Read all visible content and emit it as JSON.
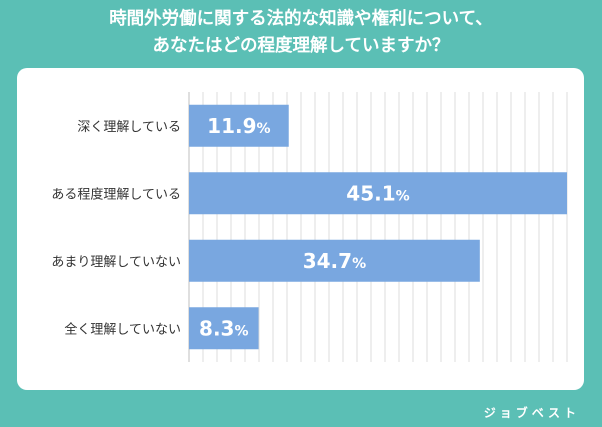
{
  "chart_data": {
    "type": "bar",
    "orientation": "horizontal",
    "title_lines": [
      "時間外労働に関する法的な知識や権利について、",
      "あなたはどの程度理解していますか？"
    ],
    "categories": [
      "深く理解している",
      "ある程度理解している",
      "あまり理解していない",
      "全く理解していない"
    ],
    "values": [
      11.9,
      45.1,
      34.7,
      8.3
    ],
    "value_labels": [
      "11.9",
      "45.1",
      "34.7",
      "8.3"
    ],
    "unit": "%",
    "xlim": [
      0,
      45.1
    ],
    "grid": true,
    "xlabel": "",
    "ylabel": ""
  },
  "colors": {
    "background": "#5bbfb5",
    "bar": "#79a7e0",
    "label_inside": "#ffffff",
    "label_outside": "#5b86b8",
    "category_text": "#333333",
    "grid": "#dcdcdc"
  },
  "brand": "ジョブベスト"
}
